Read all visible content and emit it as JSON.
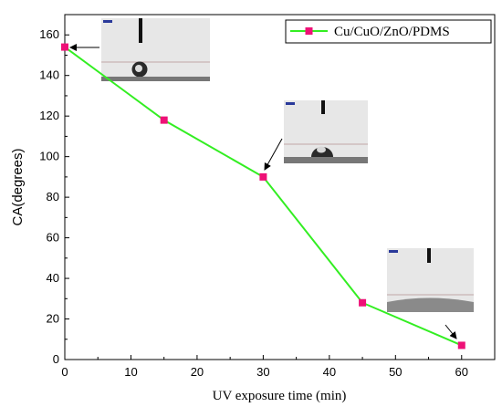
{
  "chart_data": {
    "type": "line",
    "xlabel": "UV exposure time (min)",
    "ylabel": "CA(degrees)",
    "xlim": [
      0,
      65
    ],
    "ylim": [
      0,
      170
    ],
    "xticks": [
      0,
      10,
      20,
      30,
      40,
      50,
      60
    ],
    "yticks": [
      0,
      20,
      40,
      60,
      80,
      100,
      120,
      140,
      160
    ],
    "grid": false,
    "legend": "top-right",
    "series": [
      {
        "name": "Cu/CuO/ZnO/PDMS",
        "x": [
          0,
          15,
          30,
          45,
          60
        ],
        "y": [
          154,
          118,
          90,
          28,
          7
        ],
        "line_color": "#33ee22",
        "marker_color": "#ee1177",
        "marker": "square"
      }
    ],
    "insets": [
      {
        "label": "droplet-image-154",
        "points_to_x": 0,
        "points_to_y": 154
      },
      {
        "label": "droplet-image-90",
        "points_to_x": 30,
        "points_to_y": 90
      },
      {
        "label": "droplet-image-7",
        "points_to_x": 60,
        "points_to_y": 7
      }
    ]
  }
}
